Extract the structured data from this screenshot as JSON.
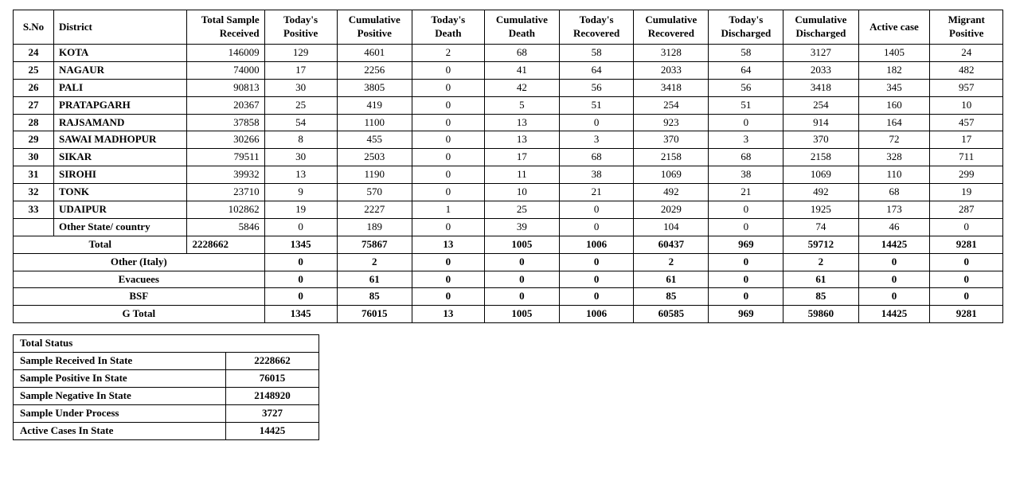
{
  "columns": [
    {
      "key": "sno",
      "label": "S.No"
    },
    {
      "key": "dist",
      "label": "District"
    },
    {
      "key": "samp",
      "label": "Total Sample Received"
    },
    {
      "key": "tpos",
      "label": "Today's Positive"
    },
    {
      "key": "cpos",
      "label": "Cumulative Positive"
    },
    {
      "key": "tdth",
      "label": "Today's Death"
    },
    {
      "key": "cdth",
      "label": "Cumulative Death"
    },
    {
      "key": "trec",
      "label": "Today's Recovered"
    },
    {
      "key": "crec",
      "label": "Cumulative Recovered"
    },
    {
      "key": "tdis",
      "label": "Today's Discharged"
    },
    {
      "key": "cdis",
      "label": "Cumulative Discharged"
    },
    {
      "key": "actv",
      "label": "Active  case"
    },
    {
      "key": "mig",
      "label": "Migrant Positive"
    }
  ],
  "rows": [
    {
      "sno": "24",
      "dist": "KOTA",
      "samp": "146009",
      "tpos": "129",
      "cpos": "4601",
      "tdth": "2",
      "cdth": "68",
      "trec": "58",
      "crec": "3128",
      "tdis": "58",
      "cdis": "3127",
      "actv": "1405",
      "mig": "24"
    },
    {
      "sno": "25",
      "dist": "NAGAUR",
      "samp": "74000",
      "tpos": "17",
      "cpos": "2256",
      "tdth": "0",
      "cdth": "41",
      "trec": "64",
      "crec": "2033",
      "tdis": "64",
      "cdis": "2033",
      "actv": "182",
      "mig": "482"
    },
    {
      "sno": "26",
      "dist": "PALI",
      "samp": "90813",
      "tpos": "30",
      "cpos": "3805",
      "tdth": "0",
      "cdth": "42",
      "trec": "56",
      "crec": "3418",
      "tdis": "56",
      "cdis": "3418",
      "actv": "345",
      "mig": "957"
    },
    {
      "sno": "27",
      "dist": "PRATAPGARH",
      "samp": "20367",
      "tpos": "25",
      "cpos": "419",
      "tdth": "0",
      "cdth": "5",
      "trec": "51",
      "crec": "254",
      "tdis": "51",
      "cdis": "254",
      "actv": "160",
      "mig": "10"
    },
    {
      "sno": "28",
      "dist": "RAJSAMAND",
      "samp": "37858",
      "tpos": "54",
      "cpos": "1100",
      "tdth": "0",
      "cdth": "13",
      "trec": "0",
      "crec": "923",
      "tdis": "0",
      "cdis": "914",
      "actv": "164",
      "mig": "457"
    },
    {
      "sno": "29",
      "dist": "SAWAI MADHOPUR",
      "samp": "30266",
      "tpos": "8",
      "cpos": "455",
      "tdth": "0",
      "cdth": "13",
      "trec": "3",
      "crec": "370",
      "tdis": "3",
      "cdis": "370",
      "actv": "72",
      "mig": "17"
    },
    {
      "sno": "30",
      "dist": "SIKAR",
      "samp": "79511",
      "tpos": "30",
      "cpos": "2503",
      "tdth": "0",
      "cdth": "17",
      "trec": "68",
      "crec": "2158",
      "tdis": "68",
      "cdis": "2158",
      "actv": "328",
      "mig": "711"
    },
    {
      "sno": "31",
      "dist": "SIROHI",
      "samp": "39932",
      "tpos": "13",
      "cpos": "1190",
      "tdth": "0",
      "cdth": "11",
      "trec": "38",
      "crec": "1069",
      "tdis": "38",
      "cdis": "1069",
      "actv": "110",
      "mig": "299"
    },
    {
      "sno": "32",
      "dist": "TONK",
      "samp": "23710",
      "tpos": "9",
      "cpos": "570",
      "tdth": "0",
      "cdth": "10",
      "trec": "21",
      "crec": "492",
      "tdis": "21",
      "cdis": "492",
      "actv": "68",
      "mig": "19"
    },
    {
      "sno": "33",
      "dist": "UDAIPUR",
      "samp": "102862",
      "tpos": "19",
      "cpos": "2227",
      "tdth": "1",
      "cdth": "25",
      "trec": "0",
      "crec": "2029",
      "tdis": "0",
      "cdis": "1925",
      "actv": "173",
      "mig": "287"
    },
    {
      "sno": "",
      "dist": "Other State/ country",
      "samp": "5846",
      "tpos": "0",
      "cpos": "189",
      "tdth": "0",
      "cdth": "39",
      "trec": "0",
      "crec": "104",
      "tdis": "0",
      "cdis": "74",
      "actv": "46",
      "mig": "0"
    }
  ],
  "total": {
    "label": "Total",
    "samp": "2228662",
    "tpos": "1345",
    "cpos": "75867",
    "tdth": "13",
    "cdth": "1005",
    "trec": "1006",
    "crec": "60437",
    "tdis": "969",
    "cdis": "59712",
    "actv": "14425",
    "mig": "9281"
  },
  "summary_rows": [
    {
      "label": "Other (Italy)",
      "tpos": "0",
      "cpos": "2",
      "tdth": "0",
      "cdth": "0",
      "trec": "0",
      "crec": "2",
      "tdis": "0",
      "cdis": "2",
      "actv": "0",
      "mig": "0"
    },
    {
      "label": "Evacuees",
      "tpos": "0",
      "cpos": "61",
      "tdth": "0",
      "cdth": "0",
      "trec": "0",
      "crec": "61",
      "tdis": "0",
      "cdis": "61",
      "actv": "0",
      "mig": "0"
    },
    {
      "label": "BSF",
      "tpos": "0",
      "cpos": "85",
      "tdth": "0",
      "cdth": "0",
      "trec": "0",
      "crec": "85",
      "tdis": "0",
      "cdis": "85",
      "actv": "0",
      "mig": "0"
    },
    {
      "label": "G Total",
      "tpos": "1345",
      "cpos": "76015",
      "tdth": "13",
      "cdth": "1005",
      "trec": "1006",
      "crec": "60585",
      "tdis": "969",
      "cdis": "59860",
      "actv": "14425",
      "mig": "9281"
    }
  ],
  "status_title": "Total Status",
  "status_rows": [
    {
      "label": "Sample Received In State",
      "val": "2228662"
    },
    {
      "label": "Sample Positive In State",
      "val": "76015"
    },
    {
      "label": "Sample Negative In State",
      "val": "2148920"
    },
    {
      "label": "Sample Under Process",
      "val": "3727"
    },
    {
      "label": "Active Cases In State",
      "val": "14425"
    }
  ]
}
